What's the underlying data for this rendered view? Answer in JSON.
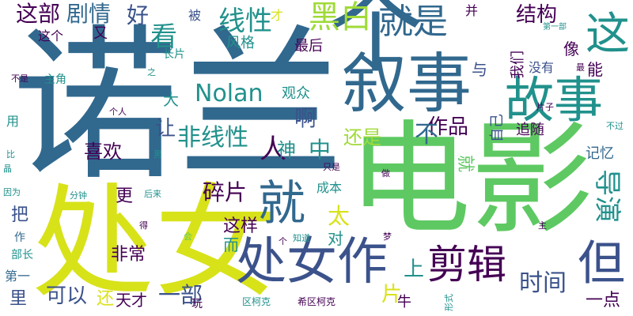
{
  "background": "#ffffff",
  "palette": {
    "dark_purple": "#440154",
    "indigo": "#3b528b",
    "blue": "#31688e",
    "teal": "#21918c",
    "green": "#5ec962",
    "lime": "#a0da39",
    "yellow": "#d8e219"
  },
  "words": [
    {
      "text": "诺兰",
      "color": "#31688e"
    },
    {
      "text": "电影",
      "color": "#5ec962"
    },
    {
      "text": "处女",
      "color": "#d8e219"
    },
    {
      "text": "个",
      "color": "#31688e"
    },
    {
      "text": "叙事",
      "color": "#31688e"
    },
    {
      "text": "处女作",
      "color": "#3b528b"
    },
    {
      "text": "故事",
      "color": "#21918c"
    },
    {
      "text": "这",
      "color": "#21918c"
    },
    {
      "text": "就",
      "color": "#31688e"
    },
    {
      "text": "剪辑",
      "color": "#440154"
    },
    {
      "text": "但",
      "color": "#3b528b"
    },
    {
      "text": "就是",
      "color": "#31688e"
    },
    {
      "text": "黑白",
      "color": "#a0da39"
    },
    {
      "text": "线性",
      "color": "#21918c"
    },
    {
      "text": "Nolan",
      "color": "#21918c"
    },
    {
      "text": "非线性",
      "color": "#21918c"
    },
    {
      "text": "人",
      "color": "#440154"
    },
    {
      "text": "导演",
      "color": "#21918c"
    },
    {
      "text": "时间",
      "color": "#3b528b"
    },
    {
      "text": "看",
      "color": "#21918c"
    },
    {
      "text": "这部",
      "color": "#440154"
    },
    {
      "text": "剧情",
      "color": "#31688e"
    },
    {
      "text": "好",
      "color": "#3b528b"
    },
    {
      "text": "结构",
      "color": "#440154"
    },
    {
      "text": "作品",
      "color": "#440154"
    },
    {
      "text": "啊",
      "color": "#3b528b"
    },
    {
      "text": "碎片",
      "color": "#440154"
    },
    {
      "text": "还是",
      "color": "#a0da39"
    },
    {
      "text": "喜欢",
      "color": "#440154"
    },
    {
      "text": "可以",
      "color": "#3b528b"
    },
    {
      "text": "一部",
      "color": "#3b528b"
    },
    {
      "text": "让",
      "color": "#3b528b"
    },
    {
      "text": "中",
      "color": "#21918c"
    },
    {
      "text": "神",
      "color": "#21918c"
    },
    {
      "text": "不",
      "color": "#31688e"
    },
    {
      "text": "太",
      "color": "#d8e219"
    },
    {
      "text": "上",
      "color": "#21918c"
    },
    {
      "text": "片",
      "color": "#d8e219"
    },
    {
      "text": "一点",
      "color": "#440154"
    },
    {
      "text": "这样",
      "color": "#440154"
    },
    {
      "text": "非常",
      "color": "#440154"
    },
    {
      "text": "天才",
      "color": "#440154"
    },
    {
      "text": "还",
      "color": "#d8e219"
    },
    {
      "text": "里",
      "color": "#3b528b"
    },
    {
      "text": "把",
      "color": "#3b528b"
    },
    {
      "text": "更",
      "color": "#440154"
    },
    {
      "text": "风格",
      "color": "#21918c"
    },
    {
      "text": "最后",
      "color": "#440154"
    },
    {
      "text": "观众",
      "color": "#21918c"
    },
    {
      "text": "大",
      "color": "#21918c"
    },
    {
      "text": "与",
      "color": "#3b528b"
    },
    {
      "text": "像",
      "color": "#440154"
    },
    {
      "text": "能",
      "color": "#440154"
    },
    {
      "text": "没有",
      "color": "#3b528b"
    },
    {
      "text": "我们",
      "color": "#440154"
    },
    {
      "text": "自己",
      "color": "#3b528b"
    },
    {
      "text": "追随",
      "color": "#440154"
    },
    {
      "text": "记忆",
      "color": "#31688e"
    },
    {
      "text": "成本",
      "color": "#21918c"
    },
    {
      "text": "对",
      "color": "#21918c"
    },
    {
      "text": "而",
      "color": "#21918c"
    },
    {
      "text": "被",
      "color": "#3b528b"
    },
    {
      "text": "又",
      "color": "#440154"
    },
    {
      "text": "并",
      "color": "#440154"
    },
    {
      "text": "这个",
      "color": "#440154"
    },
    {
      "text": "长片",
      "color": "#21918c"
    },
    {
      "text": "主角",
      "color": "#21918c"
    },
    {
      "text": "用",
      "color": "#21918c"
    },
    {
      "text": "部长",
      "color": "#21918c"
    },
    {
      "text": "第一",
      "color": "#31688e"
    },
    {
      "text": "作",
      "color": "#31688e"
    },
    {
      "text": "牛",
      "color": "#440154"
    },
    {
      "text": "玩",
      "color": "#440154"
    },
    {
      "text": "区柯克",
      "color": "#21918c"
    },
    {
      "text": "希区柯克",
      "color": "#440154"
    },
    {
      "text": "形式",
      "color": "#21918c"
    },
    {
      "text": "知道",
      "color": "#21918c"
    },
    {
      "text": "只是",
      "color": "#440154"
    },
    {
      "text": "做",
      "color": "#440154"
    },
    {
      "text": "梦",
      "color": "#440154"
    },
    {
      "text": "主",
      "color": "#440154"
    },
    {
      "text": "会",
      "color": "#5ec962"
    },
    {
      "text": "得",
      "color": "#440154"
    },
    {
      "text": "后来",
      "color": "#21918c"
    },
    {
      "text": "分钟",
      "color": "#21918c"
    },
    {
      "text": "因为",
      "color": "#21918c"
    },
    {
      "text": "比",
      "color": "#21918c"
    },
    {
      "text": "晶",
      "color": "#21918c"
    },
    {
      "text": "男",
      "color": "#21918c"
    },
    {
      "text": "个人",
      "color": "#440154"
    },
    {
      "text": "之",
      "color": "#21918c"
    },
    {
      "text": "不是",
      "color": "#440154"
    },
    {
      "text": "片子",
      "color": "#440154"
    },
    {
      "text": "不过",
      "color": "#21918c"
    },
    {
      "text": "最",
      "color": "#440154"
    },
    {
      "text": "第一部",
      "color": "#21918c"
    },
    {
      "text": "才",
      "color": "#d8e219"
    },
    {
      "text": "个",
      "color": "#440154"
    },
    {
      "text": "就",
      "color": "#5ec962"
    }
  ]
}
